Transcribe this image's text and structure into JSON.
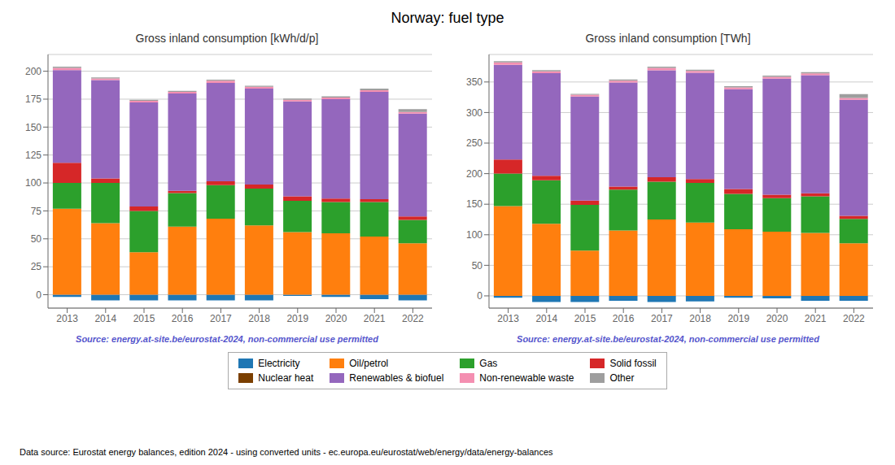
{
  "title": "Norway: fuel type",
  "annotations": [
    "Data source: Eurostat energy balances, edition 2024 - using converted units - ec.europa.eu/eurostat/web/energy/data/energy-balances"
  ],
  "legend": "bottom",
  "chart_data": [
    {
      "type": "bar",
      "stacked": true,
      "title": "Gross inland consumption [kWh/d/p]",
      "categories": [
        2013,
        2014,
        2015,
        2016,
        2017,
        2018,
        2019,
        2020,
        2021,
        2022
      ],
      "series": [
        {
          "name": "Electricity",
          "color": "#1f77b4",
          "values": [
            -2.0,
            -5.0,
            -5.0,
            -5.0,
            -5.0,
            -5.0,
            -1.0,
            -2.0,
            -4.0,
            -5.0
          ]
        },
        {
          "name": "Oil/petrol",
          "color": "#ff7f0e",
          "values": [
            77.0,
            64.0,
            38.0,
            61.0,
            68.0,
            62.0,
            56.0,
            55.0,
            52.0,
            46.0
          ]
        },
        {
          "name": "Gas",
          "color": "#2ca02c",
          "values": [
            23.0,
            36.0,
            37.0,
            30.0,
            30.0,
            33.0,
            28.0,
            28.0,
            31.0,
            21.0
          ]
        },
        {
          "name": "Solid fossil",
          "color": "#d62728",
          "values": [
            18.0,
            4.0,
            4.0,
            2.0,
            3.5,
            3.5,
            4.0,
            3.0,
            2.5,
            3.0
          ]
        },
        {
          "name": "Nuclear heat",
          "color": "#7b3f00",
          "values": [
            0.0,
            0.0,
            0.0,
            0.0,
            0.0,
            0.0,
            0.0,
            0.0,
            0.0,
            0.0
          ]
        },
        {
          "name": "Renewables & biofuel",
          "color": "#9467bd",
          "values": [
            83.0,
            88.0,
            93.0,
            87.0,
            88.0,
            86.0,
            85.0,
            89.0,
            96.0,
            92.0
          ]
        },
        {
          "name": "Non-renewable waste",
          "color": "#f48fb1",
          "values": [
            2.0,
            1.5,
            1.5,
            1.5,
            2.0,
            1.5,
            1.5,
            1.5,
            1.5,
            1.5
          ]
        },
        {
          "name": "Other",
          "color": "#9e9e9e",
          "values": [
            1.0,
            1.0,
            1.0,
            1.0,
            1.0,
            1.0,
            1.0,
            1.0,
            1.5,
            2.5
          ]
        }
      ],
      "ylim": [
        -12,
        215
      ],
      "yticks": [
        0,
        25,
        50,
        75,
        100,
        125,
        150,
        175,
        200
      ],
      "grid": true,
      "annotations": [
        "Source: energy.at-site.be/eurostat-2024, non-commercial use permitted"
      ]
    },
    {
      "type": "bar",
      "stacked": true,
      "title": "Gross inland consumption [TWh]",
      "categories": [
        2013,
        2014,
        2015,
        2016,
        2017,
        2018,
        2019,
        2020,
        2021,
        2022
      ],
      "series": [
        {
          "name": "Electricity",
          "color": "#1f77b4",
          "values": [
            -3.0,
            -10.0,
            -10.0,
            -8.0,
            -10.0,
            -9.0,
            -3.0,
            -4.0,
            -8.0,
            -8.0
          ]
        },
        {
          "name": "Oil/petrol",
          "color": "#ff7f0e",
          "values": [
            147.0,
            118.0,
            74.0,
            107.0,
            125.0,
            120.0,
            109.0,
            105.0,
            103.0,
            86.0
          ]
        },
        {
          "name": "Gas",
          "color": "#2ca02c",
          "values": [
            53.0,
            71.0,
            75.0,
            67.0,
            62.0,
            65.0,
            58.0,
            55.0,
            60.0,
            40.0
          ]
        },
        {
          "name": "Solid fossil",
          "color": "#d62728",
          "values": [
            23.0,
            7.5,
            7.0,
            5.0,
            7.0,
            6.0,
            8.0,
            5.5,
            5.0,
            5.0
          ]
        },
        {
          "name": "Nuclear heat",
          "color": "#7b3f00",
          "values": [
            0.0,
            0.0,
            0.0,
            0.0,
            0.0,
            0.0,
            0.0,
            0.0,
            0.0,
            0.0
          ]
        },
        {
          "name": "Renewables & biofuel",
          "color": "#9467bd",
          "values": [
            155.0,
            168.0,
            170.0,
            170.0,
            175.0,
            174.0,
            163.0,
            190.0,
            193.0,
            190.0
          ]
        },
        {
          "name": "Non-renewable waste",
          "color": "#f48fb1",
          "values": [
            4.0,
            3.0,
            3.0,
            3.0,
            4.0,
            3.0,
            3.0,
            3.0,
            3.0,
            3.0
          ]
        },
        {
          "name": "Other",
          "color": "#9e9e9e",
          "values": [
            2.0,
            2.0,
            1.5,
            2.0,
            2.0,
            2.0,
            2.0,
            2.0,
            2.0,
            6.0
          ]
        }
      ],
      "ylim": [
        -20,
        395
      ],
      "yticks": [
        0,
        50,
        100,
        150,
        200,
        250,
        300,
        350
      ],
      "grid": true,
      "annotations": [
        "Source: energy.at-site.be/eurostat-2024, non-commercial use permitted"
      ]
    }
  ]
}
